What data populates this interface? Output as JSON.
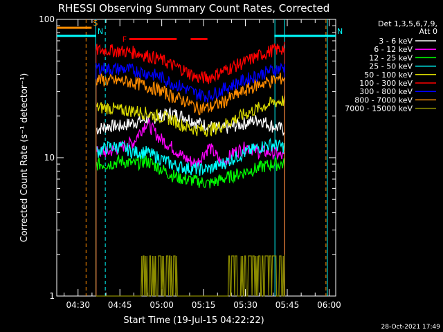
{
  "chart_data": {
    "type": "line",
    "title": "RHESSI Observing Summary Count Rates, Corrected",
    "xlabel": "Start Time (19-Jul-15 04:22:22)",
    "ylabel": "Corrected Count Rate (s⁻¹ detector⁻¹)",
    "yscale": "log",
    "ylim": [
      1,
      100
    ],
    "xlim_minutes": [
      0,
      100
    ],
    "x_start": "04:22:22",
    "x_ticks": [
      {
        "label": "04:30",
        "min": 7.63
      },
      {
        "label": "04:45",
        "min": 22.63
      },
      {
        "label": "05:00",
        "min": 37.63
      },
      {
        "label": "05:15",
        "min": 52.63
      },
      {
        "label": "05:30",
        "min": 67.63
      },
      {
        "label": "05:45",
        "min": 82.63
      },
      {
        "label": "06:00",
        "min": 97.63
      }
    ],
    "y_ticks": [
      1,
      10,
      100
    ],
    "legend_header": [
      "Det 1,3,5,6,7,9,",
      "Att 0"
    ],
    "footer_date": "28-Oct-2021 17:49",
    "data_start_min": 14.1,
    "data_end_min": 81.7,
    "series": [
      {
        "name": "3 - 6 keV",
        "color": "#ffffff",
        "values": [
          16,
          17,
          17,
          18,
          19,
          20,
          21,
          20,
          18,
          17,
          16,
          17,
          18,
          19,
          17,
          16
        ]
      },
      {
        "name": "6 - 12 keV",
        "color": "#ff00ff",
        "values": [
          11,
          11,
          12,
          13,
          18,
          14,
          12,
          10,
          9,
          12,
          9,
          11,
          12,
          11,
          11,
          10
        ]
      },
      {
        "name": "12 - 25 keV",
        "color": "#00ff00",
        "values": [
          9,
          9,
          9.5,
          9,
          9.5,
          8.5,
          7.5,
          7,
          6.8,
          6.5,
          7,
          7.5,
          8,
          8.5,
          9,
          9
        ]
      },
      {
        "name": "25 - 50 keV",
        "color": "#00ffff",
        "values": [
          11,
          12,
          12,
          11,
          11,
          10,
          9,
          8.5,
          8.3,
          8.3,
          9,
          10,
          11,
          12,
          12.5,
          12
        ]
      },
      {
        "name": "50 - 100 keV",
        "color": "#d8d800",
        "values": [
          23,
          23,
          22,
          22,
          21,
          20,
          19,
          17,
          16,
          16,
          17,
          19,
          21,
          23,
          25,
          26
        ]
      },
      {
        "name": "100 - 300 keV",
        "color": "#ff0000",
        "values": [
          60,
          60,
          59,
          58,
          55,
          52,
          47,
          43,
          38,
          38,
          42,
          46,
          50,
          55,
          60,
          62
        ]
      },
      {
        "name": "300 - 800 keV",
        "color": "#0000ff",
        "values": [
          45,
          44,
          44,
          43,
          41,
          39,
          35,
          32,
          29,
          28,
          31,
          34,
          37,
          40,
          43,
          45
        ]
      },
      {
        "name": "800 - 7000 keV",
        "color": "#ff8c00",
        "values": [
          37,
          36,
          36,
          35,
          33,
          31,
          28,
          26,
          23,
          23,
          25,
          28,
          31,
          34,
          36,
          38
        ]
      },
      {
        "name": "7000 - 15000 keV",
        "color": "#8b8b00",
        "values": [
          1,
          1,
          1,
          1,
          1.9,
          1.9,
          1.9,
          1,
          1,
          1,
          1,
          1.9,
          1.9,
          1.9,
          1.9,
          2.0
        ]
      }
    ],
    "annotations": [
      {
        "label": "S",
        "color": "#ff8c00",
        "y": 87,
        "x_from": 0,
        "x_to": 12.5
      },
      {
        "label": "N",
        "color": "#00ffff",
        "y": 76,
        "x_from": 0,
        "x_to": 14.1
      },
      {
        "label": "N",
        "color": "#00ffff",
        "y": 76,
        "x_from": 78.0,
        "x_to": 100
      },
      {
        "label": "F",
        "color": "#ff0000",
        "y": 72,
        "x_from": 26.0,
        "x_to": 43.0
      },
      {
        "label": "",
        "color": "#ff0000",
        "y": 72,
        "x_from": 48.0,
        "x_to": 54.0
      }
    ],
    "vertical_markers": [
      {
        "min": 10.5,
        "color": "#ff8c00",
        "style": "dashed"
      },
      {
        "min": 14.0,
        "color": "#00ffff",
        "style": "solid"
      },
      {
        "min": 17.4,
        "color": "#00ffff",
        "style": "dashed"
      },
      {
        "min": 78.2,
        "color": "#00ffff",
        "style": "solid"
      },
      {
        "min": 81.7,
        "color": "#00ffff",
        "style": "solid"
      },
      {
        "min": 96.5,
        "color": "#ff8c00",
        "style": "dashed"
      },
      {
        "min": 97.0,
        "color": "#00ffff",
        "style": "solid"
      }
    ]
  }
}
